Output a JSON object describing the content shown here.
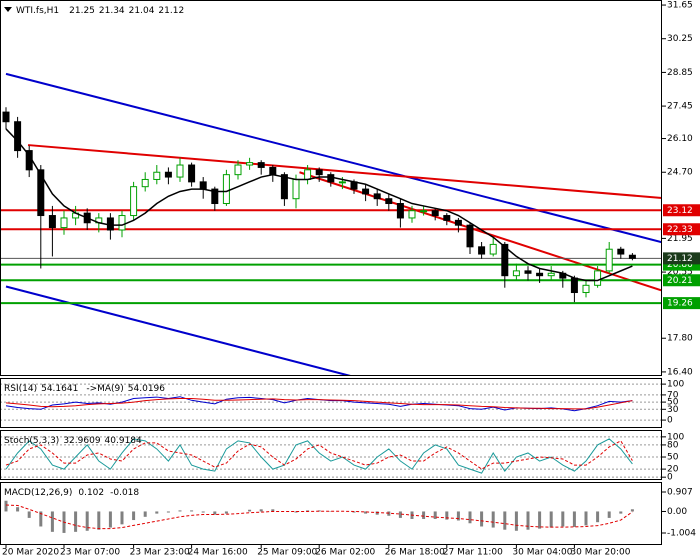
{
  "chart_data": [
    {
      "type": "candlestick",
      "title": "WTI.fs,H1",
      "ohlc": [
        21.25,
        21.34,
        21.04,
        21.12
      ],
      "up_color": "#00a000",
      "down_color": "#000000",
      "open": [
        27.2,
        26.8,
        25.6,
        24.8,
        22.9,
        22.4,
        22.8,
        23.0,
        22.6,
        22.8,
        22.3,
        22.9,
        24.1,
        24.4,
        24.7,
        24.5,
        25.0,
        24.3,
        24.0,
        23.4,
        24.6,
        25.0,
        25.1,
        24.9,
        24.6,
        23.6,
        24.4,
        24.8,
        24.6,
        24.3,
        24.3,
        24.0,
        23.8,
        23.6,
        23.4,
        22.8,
        23.1,
        23.1,
        22.9,
        22.7,
        22.5,
        21.6,
        21.3,
        21.7,
        20.4,
        20.6,
        20.5,
        20.4,
        20.5,
        20.3,
        19.7,
        20.0,
        20.6,
        21.5,
        21.25
      ],
      "high": [
        27.4,
        27.0,
        25.8,
        25.0,
        23.3,
        23.1,
        23.3,
        23.2,
        23.0,
        23.0,
        23.1,
        24.3,
        24.7,
        25.0,
        24.9,
        25.3,
        25.1,
        24.5,
        24.1,
        24.8,
        25.2,
        25.3,
        25.2,
        25.0,
        24.7,
        24.6,
        25.0,
        24.9,
        24.7,
        24.5,
        24.4,
        24.2,
        24.0,
        23.8,
        23.6,
        23.3,
        23.3,
        23.2,
        23.0,
        22.8,
        22.6,
        21.8,
        22.0,
        21.8,
        20.9,
        20.8,
        20.7,
        20.8,
        20.6,
        20.4,
        20.2,
        20.8,
        21.8,
        21.6,
        21.34
      ],
      "low": [
        26.5,
        25.3,
        24.5,
        20.7,
        21.2,
        22.1,
        22.5,
        22.3,
        22.2,
        21.9,
        22.0,
        22.7,
        23.9,
        24.2,
        24.2,
        24.3,
        24.1,
        23.6,
        23.1,
        23.3,
        24.4,
        24.8,
        24.6,
        24.3,
        23.3,
        23.2,
        24.2,
        24.3,
        24.1,
        24.0,
        23.8,
        23.5,
        23.3,
        23.1,
        22.4,
        22.6,
        22.9,
        22.7,
        22.5,
        22.2,
        21.3,
        21.1,
        21.2,
        19.9,
        20.2,
        20.2,
        20.1,
        20.2,
        19.9,
        19.3,
        19.5,
        19.9,
        20.5,
        21.1,
        21.04
      ],
      "close": [
        26.8,
        25.6,
        24.8,
        22.9,
        22.4,
        22.8,
        23.0,
        22.6,
        22.8,
        22.3,
        22.9,
        24.1,
        24.4,
        24.7,
        24.5,
        25.0,
        24.3,
        24.0,
        23.4,
        24.6,
        25.0,
        25.1,
        24.9,
        24.6,
        23.6,
        24.4,
        24.8,
        24.6,
        24.3,
        24.3,
        24.0,
        23.8,
        23.6,
        23.4,
        22.8,
        23.1,
        23.1,
        22.9,
        22.7,
        22.5,
        21.6,
        21.3,
        21.7,
        20.4,
        20.6,
        20.5,
        20.4,
        20.5,
        20.3,
        19.7,
        20.0,
        20.6,
        21.5,
        21.3,
        21.12
      ],
      "ma": {
        "color": "#000000",
        "values": [
          26.5,
          26.0,
          25.4,
          24.6,
          23.8,
          23.3,
          23.0,
          22.8,
          22.6,
          22.5,
          22.5,
          22.7,
          23.0,
          23.4,
          23.7,
          23.9,
          24.0,
          24.0,
          23.9,
          23.9,
          24.1,
          24.3,
          24.5,
          24.6,
          24.5,
          24.4,
          24.4,
          24.5,
          24.5,
          24.4,
          24.3,
          24.2,
          24.0,
          23.8,
          23.6,
          23.4,
          23.3,
          23.2,
          23.1,
          22.9,
          22.6,
          22.3,
          22.0,
          21.6,
          21.2,
          20.9,
          20.7,
          20.6,
          20.5,
          20.3,
          20.2,
          20.2,
          20.4,
          20.6,
          20.8
        ]
      },
      "levels": [
        {
          "value": 23.12,
          "color": "#e00000"
        },
        {
          "value": 22.33,
          "color": "#e00000"
        },
        {
          "value": 20.86,
          "color": "#00a000"
        },
        {
          "value": 20.21,
          "color": "#00a000"
        },
        {
          "value": 19.26,
          "color": "#00a000"
        }
      ],
      "trendlines": [
        {
          "color": "#0000cc",
          "x": [
            0,
            56.55
          ],
          "y": [
            28.79,
            21.79
          ]
        },
        {
          "color": "#0000cc",
          "x": [
            0,
            29.7
          ],
          "y": [
            19.95,
            16.23
          ]
        },
        {
          "color": "#e00000",
          "x": [
            1.9,
            56.55
          ],
          "y": [
            25.83,
            23.63
          ]
        },
        {
          "color": "#e00000",
          "x": [
            25.3,
            56.55
          ],
          "y": [
            24.7,
            19.78
          ]
        }
      ],
      "ylim": [
        16.23,
        31.86
      ],
      "yticks": [
        31.65,
        30.25,
        28.85,
        27.45,
        {
          "value": 26.1,
          "label": "26.10"
        },
        {
          "value": 24.7,
          "label": "24.70"
        },
        21.95,
        20.55,
        {
          "value": 17.8,
          "label": "17.80"
        },
        {
          "value": 16.4,
          "label": "16.40"
        }
      ]
    },
    {
      "type": "line",
      "grid": true,
      "ylim": [
        -22,
        117
      ],
      "yticks": [
        100,
        70,
        50,
        30,
        0
      ],
      "series": [
        {
          "name": "RSI(14)",
          "color": "#0000cc",
          "values": [
            40,
            35,
            32,
            30,
            42,
            45,
            50,
            46,
            48,
            44,
            50,
            60,
            62,
            64,
            60,
            65,
            55,
            50,
            45,
            58,
            62,
            63,
            60,
            57,
            48,
            55,
            60,
            57,
            54,
            54,
            50,
            48,
            46,
            44,
            38,
            44,
            46,
            44,
            42,
            40,
            32,
            30,
            36,
            28,
            34,
            33,
            32,
            34,
            31,
            26,
            32,
            40,
            52,
            50,
            54.1641
          ]
        },
        {
          "name": "->MA(9)",
          "color": "#e00000",
          "values": [
            48,
            45,
            42,
            38,
            37,
            38,
            40,
            43,
            45,
            46,
            47,
            50,
            54,
            57,
            59,
            60,
            60,
            58,
            55,
            55,
            56,
            57,
            58,
            59,
            57,
            56,
            57,
            57,
            56,
            55,
            54,
            52,
            50,
            48,
            46,
            44,
            43,
            43,
            43,
            42,
            40,
            38,
            37,
            35,
            34,
            33,
            33,
            32,
            32,
            31,
            31,
            36,
            42,
            48,
            54.0196
          ]
        }
      ]
    },
    {
      "type": "line",
      "title": "Stoch(5,3,3)",
      "grid": true,
      "ylim": [
        -7,
        117
      ],
      "yticks": [
        100,
        80,
        50,
        20,
        0
      ],
      "series": [
        {
          "color": "#1a9a9a",
          "values": [
            20,
            60,
            90,
            70,
            30,
            20,
            50,
            80,
            40,
            20,
            60,
            95,
            90,
            70,
            40,
            80,
            30,
            20,
            15,
            70,
            90,
            85,
            50,
            20,
            30,
            80,
            90,
            60,
            40,
            50,
            30,
            20,
            50,
            70,
            40,
            20,
            60,
            80,
            70,
            30,
            20,
            10,
            60,
            15,
            50,
            60,
            40,
            50,
            30,
            15,
            40,
            80,
            95,
            70,
            32.9609
          ]
        },
        {
          "color": "#e00000",
          "dashed": true,
          "values": [
            30,
            40,
            70,
            80,
            60,
            35,
            35,
            55,
            60,
            45,
            40,
            70,
            85,
            85,
            65,
            60,
            55,
            40,
            25,
            35,
            65,
            82,
            75,
            50,
            30,
            45,
            70,
            80,
            60,
            50,
            40,
            30,
            35,
            50,
            55,
            40,
            40,
            60,
            75,
            60,
            40,
            20,
            35,
            35,
            40,
            45,
            50,
            48,
            45,
            30,
            30,
            50,
            75,
            90,
            40.9184
          ]
        }
      ]
    },
    {
      "type": "macd",
      "title": "MACD(12,26,9)",
      "ylim": [
        -1.563,
        1.373
      ],
      "yticks": [
        0.907,
        {
          "value": 0,
          "label": "0.00"
        },
        -1.004
      ],
      "series": [
        {
          "color": "#808080",
          "values": [
            0.5,
            0.2,
            -0.3,
            -0.7,
            -0.95,
            -1.0,
            -0.95,
            -0.9,
            -0.85,
            -0.75,
            -0.6,
            -0.4,
            -0.25,
            -0.1,
            -0.05,
            0.05,
            0.05,
            -0.05,
            -0.15,
            -0.1,
            0.0,
            0.08,
            0.1,
            0.1,
            0.0,
            -0.05,
            0.05,
            0.05,
            0.02,
            0.0,
            -0.05,
            -0.1,
            -0.15,
            -0.2,
            -0.3,
            -0.35,
            -0.35,
            -0.35,
            -0.38,
            -0.42,
            -0.55,
            -0.7,
            -0.75,
            -0.85,
            -0.9,
            -0.85,
            -0.8,
            -0.75,
            -0.7,
            -0.72,
            -0.65,
            -0.5,
            -0.3,
            -0.1,
            0.102
          ]
        },
        {
          "color": "#e00000",
          "dashed": true,
          "values": [
            0.3,
            0.28,
            0.1,
            -0.1,
            -0.3,
            -0.5,
            -0.65,
            -0.75,
            -0.8,
            -0.8,
            -0.75,
            -0.65,
            -0.55,
            -0.45,
            -0.35,
            -0.25,
            -0.18,
            -0.14,
            -0.14,
            -0.13,
            -0.1,
            -0.06,
            -0.03,
            0,
            0,
            0,
            0,
            0.01,
            0.01,
            0.01,
            0,
            -0.02,
            -0.05,
            -0.08,
            -0.12,
            -0.17,
            -0.22,
            -0.26,
            -0.3,
            -0.33,
            -0.38,
            -0.44,
            -0.5,
            -0.57,
            -0.64,
            -0.69,
            -0.72,
            -0.73,
            -0.73,
            -0.72,
            -0.7,
            -0.66,
            -0.55,
            -0.4,
            -0.018
          ]
        }
      ],
      "categories": [
        "20 Mar 2020",
        null,
        null,
        null,
        null,
        "23 Mar 07:00",
        null,
        null,
        null,
        null,
        null,
        "23 Mar 23:00",
        null,
        null,
        null,
        null,
        "24 Mar 16:00",
        null,
        null,
        null,
        null,
        null,
        "25 Mar 09:00",
        null,
        null,
        null,
        null,
        "26 Mar 02:00",
        null,
        null,
        null,
        null,
        null,
        "26 Mar 18:00",
        null,
        null,
        null,
        null,
        "27 Mar 11:00",
        null,
        null,
        null,
        null,
        null,
        "30 Mar 04:00",
        null,
        null,
        null,
        null,
        "30 Mar 20:00",
        null,
        null,
        null,
        null,
        null
      ]
    }
  ]
}
